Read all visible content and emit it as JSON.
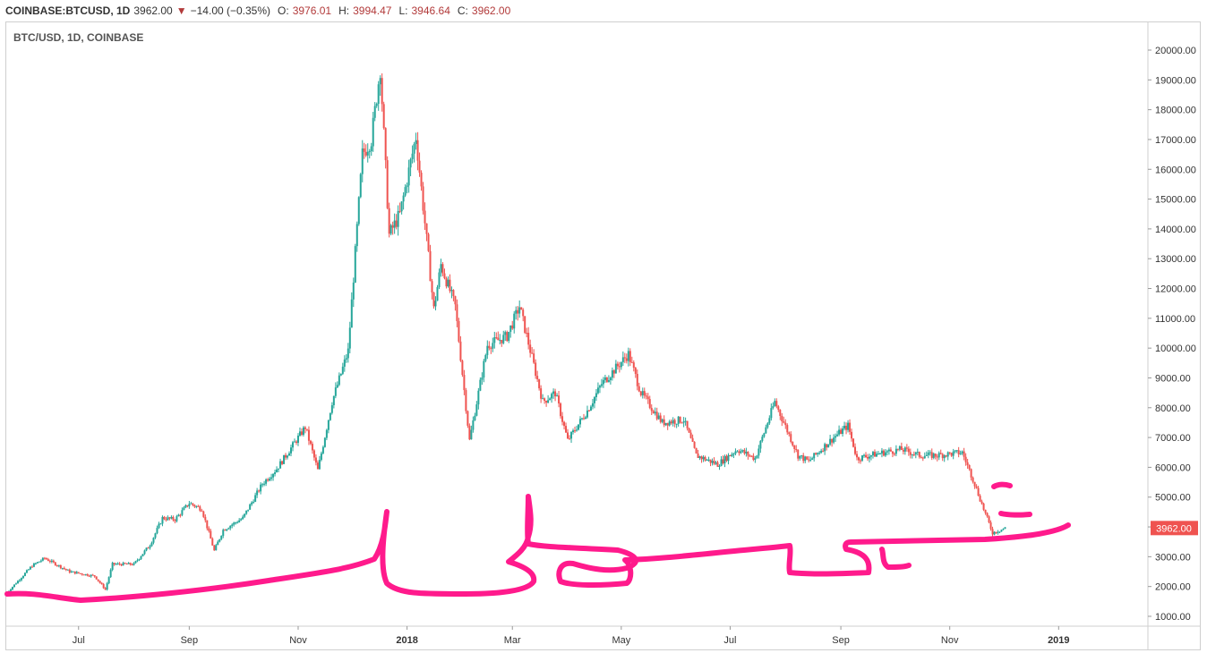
{
  "header": {
    "symbol": "COINBASE:BTCUSD, 1D",
    "last": "3962.00",
    "change": "−14.00 (−0.35%)",
    "o_label": "O:",
    "o": "3976.01",
    "h_label": "H:",
    "h": "3994.47",
    "l_label": "L:",
    "l": "3946.64",
    "c_label": "C:",
    "c": "3962.00"
  },
  "inner_title": "BTC/USD, 1D, COINBASE",
  "price_tag": "3962.00",
  "colors": {
    "up": "#26a69a",
    "down": "#ef5350",
    "marker": "#ff1a8c",
    "tag": "#ef5350"
  },
  "chart_data": {
    "type": "candlestick",
    "y_ticks": [
      "1000.00",
      "2000.00",
      "3000.00",
      "4000.00",
      "5000.00",
      "6000.00",
      "7000.00",
      "8000.00",
      "9000.00",
      "10000.00",
      "11000.00",
      "12000.00",
      "13000.00",
      "14000.00",
      "15000.00",
      "16000.00",
      "17000.00",
      "18000.00",
      "19000.00",
      "20000.00"
    ],
    "x_ticks": [
      "Jul",
      "Sep",
      "Nov",
      "2018",
      "Mar",
      "May",
      "Jul",
      "Sep",
      "Nov",
      "2019"
    ],
    "ylim": [
      700,
      20900
    ],
    "x_start": "2017-05-22",
    "x_end": "2019-02-20",
    "approx_close_series": [
      [
        "2017-05-22",
        1800
      ],
      [
        "2017-06-05",
        2700
      ],
      [
        "2017-06-12",
        2950
      ],
      [
        "2017-06-26",
        2500
      ],
      [
        "2017-07-10",
        2350
      ],
      [
        "2017-07-16",
        1900
      ],
      [
        "2017-07-20",
        2750
      ],
      [
        "2017-08-01",
        2750
      ],
      [
        "2017-08-10",
        3400
      ],
      [
        "2017-08-17",
        4300
      ],
      [
        "2017-08-24",
        4250
      ],
      [
        "2017-09-01",
        4800
      ],
      [
        "2017-09-08",
        4600
      ],
      [
        "2017-09-15",
        3200
      ],
      [
        "2017-09-20",
        3900
      ],
      [
        "2017-10-01",
        4300
      ],
      [
        "2017-10-12",
        5450
      ],
      [
        "2017-10-20",
        5950
      ],
      [
        "2017-11-05",
        7350
      ],
      [
        "2017-11-12",
        5900
      ],
      [
        "2017-11-20",
        8200
      ],
      [
        "2017-11-29",
        9900
      ],
      [
        "2017-12-07",
        16500
      ],
      [
        "2017-12-12",
        17000
      ],
      [
        "2017-12-17",
        19400
      ],
      [
        "2017-12-22",
        13800
      ],
      [
        "2017-12-28",
        14500
      ],
      [
        "2018-01-06",
        17100
      ],
      [
        "2018-01-16",
        11300
      ],
      [
        "2018-01-20",
        12800
      ],
      [
        "2018-01-28",
        11400
      ],
      [
        "2018-02-05",
        6900
      ],
      [
        "2018-02-15",
        10100
      ],
      [
        "2018-02-26",
        10400
      ],
      [
        "2018-03-05",
        11400
      ],
      [
        "2018-03-18",
        8200
      ],
      [
        "2018-03-25",
        8500
      ],
      [
        "2018-04-01",
        6900
      ],
      [
        "2018-04-12",
        7900
      ],
      [
        "2018-04-20",
        8800
      ],
      [
        "2018-05-05",
        9800
      ],
      [
        "2018-05-12",
        8500
      ],
      [
        "2018-05-24",
        7500
      ],
      [
        "2018-06-05",
        7600
      ],
      [
        "2018-06-12",
        6400
      ],
      [
        "2018-06-24",
        6100
      ],
      [
        "2018-07-05",
        6600
      ],
      [
        "2018-07-15",
        6300
      ],
      [
        "2018-07-26",
        8200
      ],
      [
        "2018-08-08",
        6400
      ],
      [
        "2018-08-14",
        6200
      ],
      [
        "2018-08-28",
        7000
      ],
      [
        "2018-09-05",
        7400
      ],
      [
        "2018-09-10",
        6300
      ],
      [
        "2018-09-25",
        6500
      ],
      [
        "2018-10-05",
        6600
      ],
      [
        "2018-10-15",
        6400
      ],
      [
        "2018-10-25",
        6400
      ],
      [
        "2018-11-08",
        6500
      ],
      [
        "2018-11-14",
        5600
      ],
      [
        "2018-11-20",
        4600
      ],
      [
        "2018-11-25",
        3800
      ],
      [
        "2018-12-02",
        3962
      ]
    ]
  }
}
